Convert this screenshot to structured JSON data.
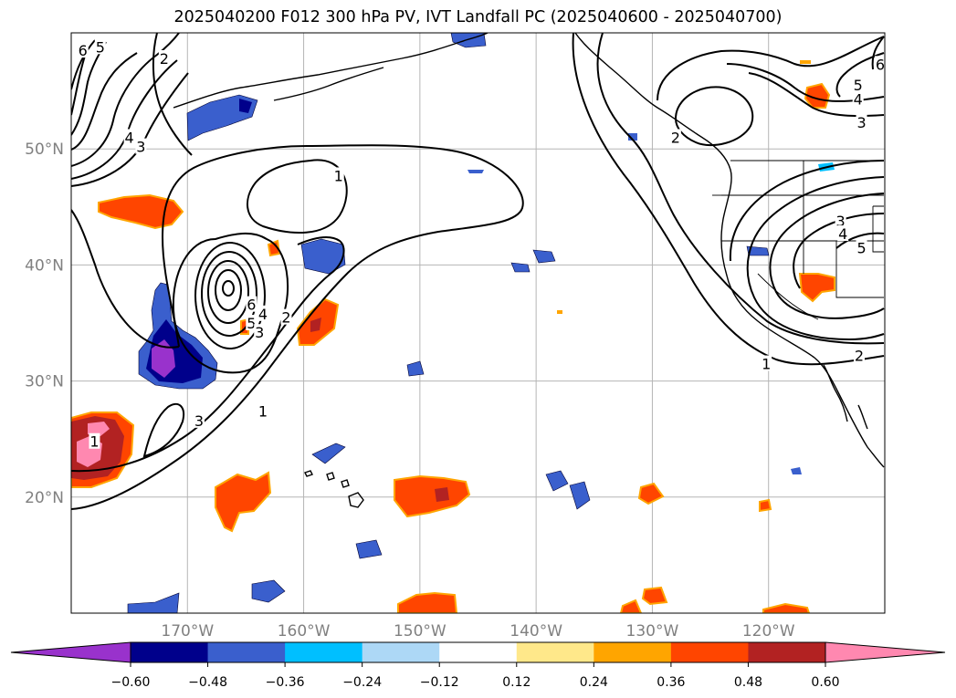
{
  "title": "2025040200 F012 300 hPa PV, IVT Landfall PC (2025040600 - 2025040700)",
  "chart_data": {
    "type": "heatmap",
    "title": "2025040200 F012 300 hPa PV, IVT Landfall PC (2025040600 - 2025040700)",
    "map_extent": {
      "lon": [
        -180,
        -110
      ],
      "lat": [
        10,
        60
      ]
    },
    "grid": true,
    "lon_ticks": [
      {
        "value": -170,
        "label": "170°W"
      },
      {
        "value": -160,
        "label": "160°W"
      },
      {
        "value": -150,
        "label": "150°W"
      },
      {
        "value": -140,
        "label": "140°W"
      },
      {
        "value": -130,
        "label": "130°W"
      },
      {
        "value": -120,
        "label": "120°W"
      }
    ],
    "lat_ticks": [
      {
        "value": 20,
        "label": "20°N"
      },
      {
        "value": 30,
        "label": "30°N"
      },
      {
        "value": 40,
        "label": "40°N"
      },
      {
        "value": 50,
        "label": "50°N"
      }
    ],
    "colorbar": {
      "levels": [
        -0.6,
        -0.48,
        -0.36,
        -0.24,
        -0.12,
        0.12,
        0.24,
        0.36,
        0.48,
        0.6
      ],
      "tick_labels": [
        "−0.60",
        "−0.48",
        "−0.36",
        "−0.24",
        "−0.12",
        "0.12",
        "0.24",
        "0.36",
        "0.48",
        "0.60"
      ],
      "colors": [
        "#9932cc",
        "#00008b",
        "#3a5fcd",
        "#00bfff",
        "#add8f6",
        "#ffffff",
        "#ffe88a",
        "#ffa500",
        "#ff4500",
        "#b22222",
        "#ff88b0"
      ],
      "extend": "both"
    },
    "shaded_regions": [
      {
        "lon": -167.5,
        "lat": 33.0,
        "value": -0.6
      },
      {
        "lon": -161.8,
        "lat": 39.5,
        "value": -0.36
      },
      {
        "lon": -164.5,
        "lat": 56.0,
        "value": -0.36
      },
      {
        "lon": -176.2,
        "lat": 24.0,
        "value": 0.6
      },
      {
        "lon": -174.0,
        "lat": 44.8,
        "value": 0.36
      },
      {
        "lon": -159.0,
        "lat": 35.0,
        "value": 0.36
      },
      {
        "lon": -164.5,
        "lat": 20.0,
        "value": 0.36
      },
      {
        "lon": -149.0,
        "lat": 20.5,
        "value": 0.48
      },
      {
        "lon": -115.3,
        "lat": 38.0,
        "value": 0.36
      },
      {
        "lon": -114.0,
        "lat": 55.0,
        "value": 0.36
      }
    ],
    "contour_labels": [
      {
        "text": "6",
        "lon": -179.0,
        "lat": 58.5
      },
      {
        "text": "5",
        "lon": -177.5,
        "lat": 58.8
      },
      {
        "text": "2",
        "lon": -172.0,
        "lat": 57.8
      },
      {
        "text": "4",
        "lon": -175.0,
        "lat": 51.0
      },
      {
        "text": "3",
        "lon": -174.0,
        "lat": 50.2
      },
      {
        "text": "1",
        "lon": -157.0,
        "lat": 47.7
      },
      {
        "text": "6",
        "lon": -164.5,
        "lat": 36.6
      },
      {
        "text": "4",
        "lon": -163.5,
        "lat": 35.8
      },
      {
        "text": "5",
        "lon": -164.5,
        "lat": 35.0
      },
      {
        "text": "3",
        "lon": -163.8,
        "lat": 34.2
      },
      {
        "text": "2",
        "lon": -161.5,
        "lat": 35.5
      },
      {
        "text": "1",
        "lon": -163.5,
        "lat": 27.4
      },
      {
        "text": "3",
        "lon": -169.0,
        "lat": 26.6
      },
      {
        "text": "1",
        "lon": -178.0,
        "lat": 24.8
      },
      {
        "text": "2",
        "lon": -128.0,
        "lat": 51.0
      },
      {
        "text": "1",
        "lon": -120.2,
        "lat": 31.5
      },
      {
        "text": "2",
        "lon": -112.2,
        "lat": 32.2
      },
      {
        "text": "3",
        "lon": -113.8,
        "lat": 43.8
      },
      {
        "text": "4",
        "lon": -113.6,
        "lat": 42.7
      },
      {
        "text": "5",
        "lon": -112.0,
        "lat": 41.5
      },
      {
        "text": "5",
        "lon": -112.3,
        "lat": 55.5
      },
      {
        "text": "4",
        "lon": -112.3,
        "lat": 54.3
      },
      {
        "text": "3",
        "lon": -112.0,
        "lat": 52.3
      },
      {
        "text": "6",
        "lon": -110.4,
        "lat": 57.3
      }
    ]
  }
}
